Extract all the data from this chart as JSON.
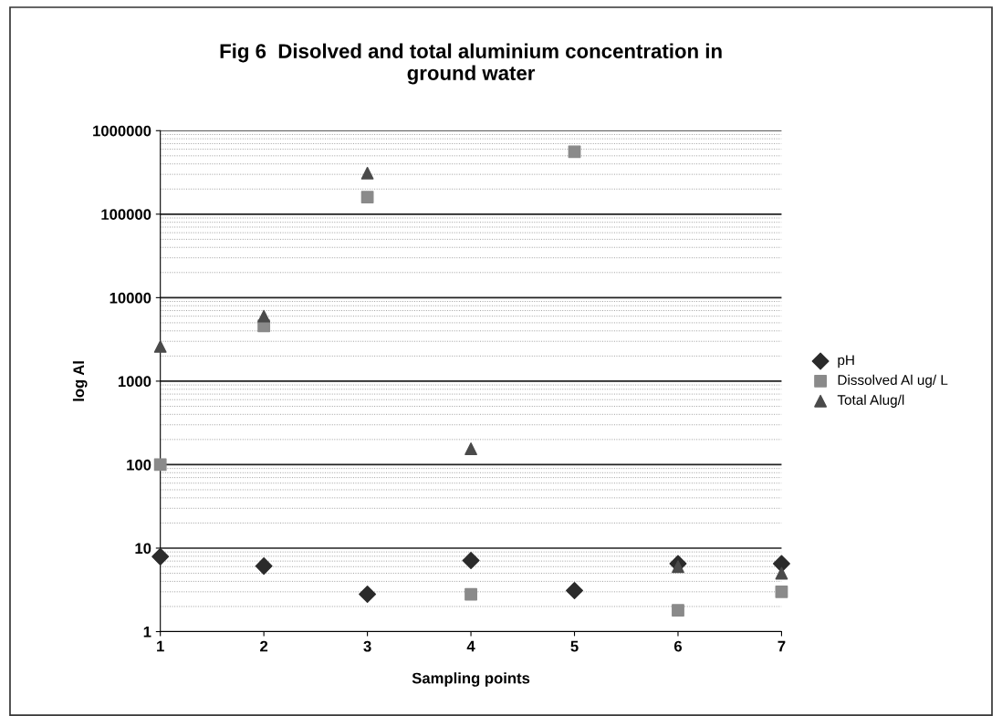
{
  "chart_data": {
    "type": "scatter",
    "title": "Fig 6  Disolved and total aluminium concentration in\nground water",
    "xlabel": "Sampling points",
    "ylabel": "log Al",
    "x": [
      1,
      2,
      3,
      4,
      5,
      6,
      7
    ],
    "series": [
      {
        "name": "pH",
        "color": "#2b2b2b",
        "marker": "diamond",
        "values": [
          7.9,
          6.1,
          2.8,
          7.1,
          3.1,
          6.5,
          6.5
        ]
      },
      {
        "name": "Dissolved Al ug/ L",
        "color": "#8a8a8a",
        "marker": "square",
        "values": [
          100,
          4600,
          160000,
          2.8,
          560000,
          1.8,
          3
        ]
      },
      {
        "name": "Total Alug/l",
        "color": "#4a4a4a",
        "marker": "triangle",
        "values": [
          2600,
          6000,
          310000,
          155,
          null,
          6,
          5
        ]
      }
    ],
    "log": "y",
    "xlim": [
      1,
      7
    ],
    "xticks": [
      1,
      2,
      3,
      4,
      5,
      6,
      7
    ],
    "ylim": [
      1,
      1000000
    ],
    "yticks": [
      1,
      10,
      100,
      1000,
      10000,
      100000,
      1000000
    ],
    "grid": "y",
    "legend": "right"
  }
}
